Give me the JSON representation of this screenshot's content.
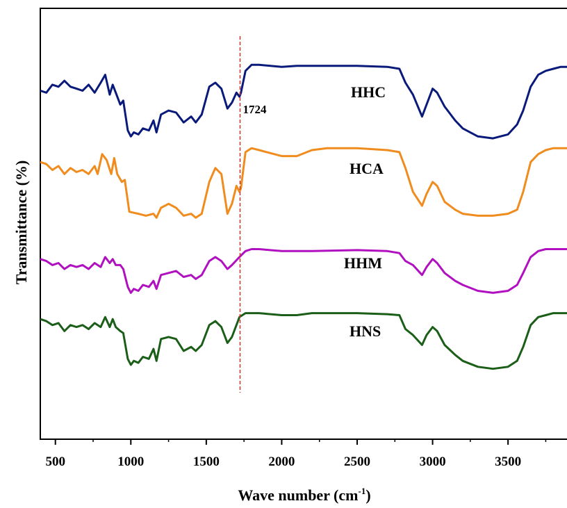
{
  "chart_data": {
    "type": "line",
    "xlabel": "Wave number (cm",
    "xlabel_sup": "-1",
    "xlabel_end": ")",
    "ylabel": "Transmittance (%)",
    "xlim": [
      400,
      3900
    ],
    "xticks": [
      500,
      1000,
      1500,
      2000,
      2500,
      3000,
      3500
    ],
    "yticks_shown": false,
    "grid": false,
    "legend": "none (series labeled inline)",
    "annotation": {
      "label": "1724",
      "x": 1724,
      "style": "red dashed vertical line"
    },
    "series": [
      {
        "name": "HHC",
        "color": "#0a1a7a",
        "offset": 68,
        "points": [
          [
            400,
            64
          ],
          [
            440,
            62
          ],
          [
            480,
            70
          ],
          [
            520,
            68
          ],
          [
            560,
            74
          ],
          [
            600,
            68
          ],
          [
            640,
            66
          ],
          [
            680,
            64
          ],
          [
            720,
            70
          ],
          [
            760,
            62
          ],
          [
            800,
            72
          ],
          [
            830,
            80
          ],
          [
            860,
            60
          ],
          [
            880,
            70
          ],
          [
            900,
            62
          ],
          [
            930,
            50
          ],
          [
            950,
            54
          ],
          [
            980,
            24
          ],
          [
            1000,
            18
          ],
          [
            1020,
            22
          ],
          [
            1050,
            20
          ],
          [
            1080,
            26
          ],
          [
            1120,
            24
          ],
          [
            1150,
            34
          ],
          [
            1170,
            22
          ],
          [
            1200,
            40
          ],
          [
            1250,
            44
          ],
          [
            1300,
            42
          ],
          [
            1350,
            32
          ],
          [
            1400,
            38
          ],
          [
            1430,
            32
          ],
          [
            1470,
            40
          ],
          [
            1520,
            68
          ],
          [
            1560,
            72
          ],
          [
            1600,
            66
          ],
          [
            1640,
            46
          ],
          [
            1670,
            52
          ],
          [
            1700,
            62
          ],
          [
            1720,
            58
          ],
          [
            1730,
            62
          ],
          [
            1760,
            84
          ],
          [
            1800,
            90
          ],
          [
            1850,
            90
          ],
          [
            2000,
            88
          ],
          [
            2100,
            89
          ],
          [
            2300,
            89
          ],
          [
            2500,
            89
          ],
          [
            2700,
            88
          ],
          [
            2780,
            86
          ],
          [
            2820,
            72
          ],
          [
            2870,
            60
          ],
          [
            2930,
            38
          ],
          [
            2960,
            50
          ],
          [
            3000,
            66
          ],
          [
            3030,
            62
          ],
          [
            3080,
            48
          ],
          [
            3150,
            34
          ],
          [
            3200,
            26
          ],
          [
            3300,
            18
          ],
          [
            3400,
            16
          ],
          [
            3500,
            20
          ],
          [
            3560,
            30
          ],
          [
            3600,
            44
          ],
          [
            3650,
            68
          ],
          [
            3700,
            80
          ],
          [
            3750,
            84
          ],
          [
            3800,
            86
          ],
          [
            3850,
            88
          ],
          [
            3900,
            88
          ]
        ]
      },
      {
        "name": "HCA",
        "color": "#f08c1e",
        "offset": 46,
        "points": [
          [
            400,
            60
          ],
          [
            440,
            58
          ],
          [
            480,
            52
          ],
          [
            520,
            56
          ],
          [
            560,
            48
          ],
          [
            600,
            54
          ],
          [
            640,
            50
          ],
          [
            680,
            52
          ],
          [
            720,
            48
          ],
          [
            760,
            56
          ],
          [
            780,
            48
          ],
          [
            810,
            68
          ],
          [
            840,
            62
          ],
          [
            870,
            48
          ],
          [
            890,
            64
          ],
          [
            910,
            48
          ],
          [
            940,
            40
          ],
          [
            960,
            42
          ],
          [
            990,
            10
          ],
          [
            1050,
            8
          ],
          [
            1100,
            6
          ],
          [
            1150,
            8
          ],
          [
            1170,
            4
          ],
          [
            1200,
            14
          ],
          [
            1250,
            18
          ],
          [
            1300,
            14
          ],
          [
            1350,
            6
          ],
          [
            1400,
            8
          ],
          [
            1430,
            4
          ],
          [
            1470,
            8
          ],
          [
            1520,
            40
          ],
          [
            1560,
            54
          ],
          [
            1600,
            48
          ],
          [
            1640,
            8
          ],
          [
            1670,
            18
          ],
          [
            1700,
            36
          ],
          [
            1720,
            30
          ],
          [
            1730,
            34
          ],
          [
            1760,
            70
          ],
          [
            1800,
            74
          ],
          [
            1850,
            72
          ],
          [
            2000,
            66
          ],
          [
            2100,
            66
          ],
          [
            2200,
            72
          ],
          [
            2300,
            74
          ],
          [
            2500,
            74
          ],
          [
            2700,
            72
          ],
          [
            2780,
            70
          ],
          [
            2820,
            54
          ],
          [
            2870,
            30
          ],
          [
            2930,
            16
          ],
          [
            2960,
            28
          ],
          [
            3000,
            40
          ],
          [
            3030,
            36
          ],
          [
            3080,
            20
          ],
          [
            3150,
            12
          ],
          [
            3200,
            8
          ],
          [
            3300,
            6
          ],
          [
            3400,
            6
          ],
          [
            3500,
            8
          ],
          [
            3560,
            12
          ],
          [
            3600,
            30
          ],
          [
            3650,
            60
          ],
          [
            3700,
            68
          ],
          [
            3750,
            72
          ],
          [
            3800,
            74
          ],
          [
            3850,
            74
          ],
          [
            3900,
            74
          ]
        ]
      },
      {
        "name": "HHM",
        "color": "#b010c0",
        "offset": 28,
        "points": [
          [
            400,
            54
          ],
          [
            440,
            52
          ],
          [
            480,
            48
          ],
          [
            520,
            50
          ],
          [
            560,
            44
          ],
          [
            600,
            48
          ],
          [
            640,
            46
          ],
          [
            680,
            48
          ],
          [
            720,
            44
          ],
          [
            760,
            50
          ],
          [
            800,
            46
          ],
          [
            830,
            56
          ],
          [
            860,
            50
          ],
          [
            880,
            54
          ],
          [
            900,
            48
          ],
          [
            930,
            48
          ],
          [
            950,
            44
          ],
          [
            980,
            26
          ],
          [
            1000,
            20
          ],
          [
            1020,
            24
          ],
          [
            1050,
            22
          ],
          [
            1080,
            28
          ],
          [
            1120,
            26
          ],
          [
            1150,
            32
          ],
          [
            1170,
            24
          ],
          [
            1200,
            38
          ],
          [
            1250,
            40
          ],
          [
            1300,
            42
          ],
          [
            1350,
            36
          ],
          [
            1400,
            38
          ],
          [
            1430,
            34
          ],
          [
            1470,
            38
          ],
          [
            1520,
            52
          ],
          [
            1560,
            56
          ],
          [
            1600,
            52
          ],
          [
            1640,
            44
          ],
          [
            1670,
            48
          ],
          [
            1720,
            56
          ],
          [
            1760,
            62
          ],
          [
            1800,
            64
          ],
          [
            1850,
            64
          ],
          [
            2000,
            62
          ],
          [
            2200,
            62
          ],
          [
            2500,
            63
          ],
          [
            2700,
            62
          ],
          [
            2780,
            60
          ],
          [
            2820,
            52
          ],
          [
            2870,
            48
          ],
          [
            2930,
            38
          ],
          [
            2960,
            46
          ],
          [
            3000,
            54
          ],
          [
            3030,
            50
          ],
          [
            3080,
            40
          ],
          [
            3150,
            32
          ],
          [
            3200,
            28
          ],
          [
            3300,
            22
          ],
          [
            3400,
            20
          ],
          [
            3500,
            22
          ],
          [
            3560,
            28
          ],
          [
            3600,
            40
          ],
          [
            3650,
            56
          ],
          [
            3700,
            62
          ],
          [
            3750,
            64
          ],
          [
            3800,
            64
          ],
          [
            3850,
            64
          ],
          [
            3900,
            64
          ]
        ]
      },
      {
        "name": "HNS",
        "color": "#1a5e18",
        "offset": 0,
        "points": [
          [
            400,
            60
          ],
          [
            440,
            58
          ],
          [
            480,
            54
          ],
          [
            520,
            56
          ],
          [
            560,
            48
          ],
          [
            600,
            54
          ],
          [
            640,
            52
          ],
          [
            680,
            54
          ],
          [
            720,
            50
          ],
          [
            760,
            56
          ],
          [
            800,
            52
          ],
          [
            830,
            62
          ],
          [
            860,
            52
          ],
          [
            880,
            60
          ],
          [
            900,
            52
          ],
          [
            930,
            48
          ],
          [
            950,
            46
          ],
          [
            980,
            20
          ],
          [
            1000,
            14
          ],
          [
            1020,
            18
          ],
          [
            1050,
            16
          ],
          [
            1080,
            22
          ],
          [
            1120,
            20
          ],
          [
            1150,
            30
          ],
          [
            1170,
            18
          ],
          [
            1200,
            40
          ],
          [
            1250,
            42
          ],
          [
            1300,
            40
          ],
          [
            1350,
            28
          ],
          [
            1400,
            32
          ],
          [
            1430,
            28
          ],
          [
            1470,
            34
          ],
          [
            1520,
            54
          ],
          [
            1560,
            58
          ],
          [
            1600,
            52
          ],
          [
            1640,
            36
          ],
          [
            1670,
            42
          ],
          [
            1720,
            62
          ],
          [
            1760,
            66
          ],
          [
            1800,
            66
          ],
          [
            1850,
            66
          ],
          [
            2000,
            64
          ],
          [
            2100,
            64
          ],
          [
            2200,
            66
          ],
          [
            2300,
            66
          ],
          [
            2500,
            66
          ],
          [
            2700,
            65
          ],
          [
            2780,
            64
          ],
          [
            2820,
            50
          ],
          [
            2870,
            44
          ],
          [
            2930,
            34
          ],
          [
            2960,
            44
          ],
          [
            3000,
            52
          ],
          [
            3030,
            48
          ],
          [
            3080,
            34
          ],
          [
            3150,
            24
          ],
          [
            3200,
            18
          ],
          [
            3300,
            12
          ],
          [
            3400,
            10
          ],
          [
            3500,
            12
          ],
          [
            3560,
            18
          ],
          [
            3600,
            32
          ],
          [
            3650,
            54
          ],
          [
            3700,
            62
          ],
          [
            3750,
            64
          ],
          [
            3800,
            66
          ],
          [
            3850,
            66
          ],
          [
            3900,
            66
          ]
        ]
      }
    ]
  }
}
